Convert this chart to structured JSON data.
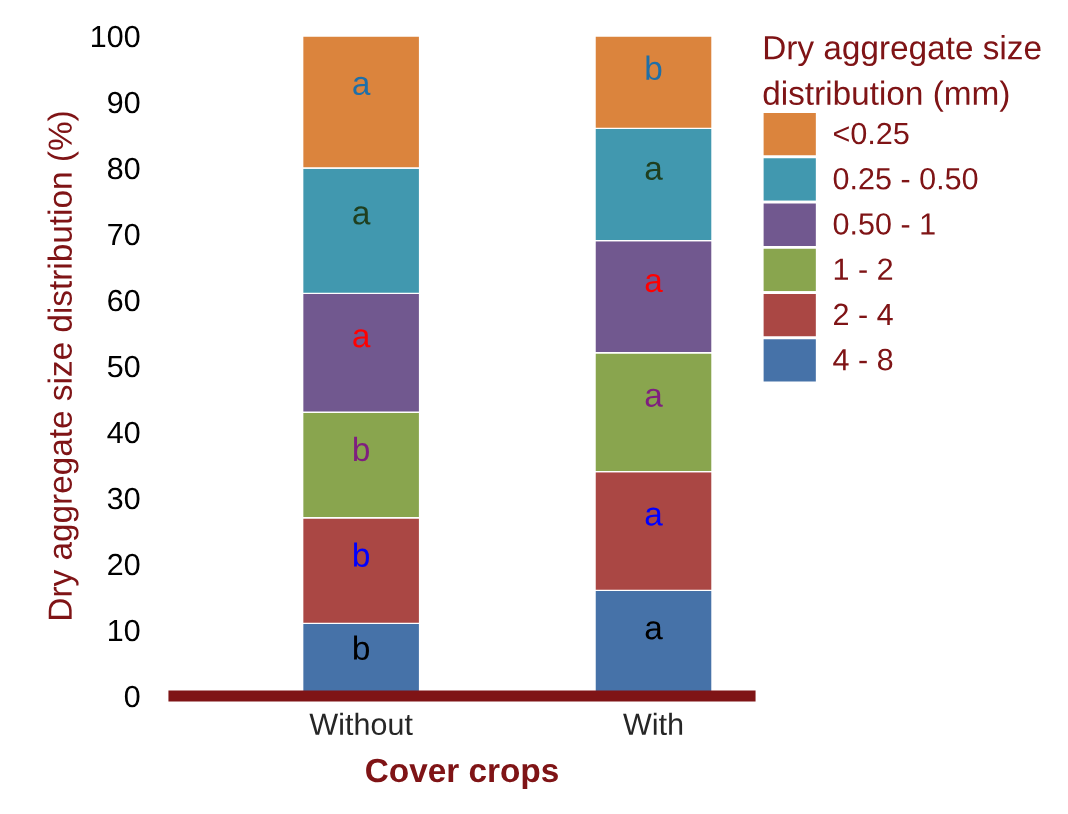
{
  "chart_data": {
    "type": "bar",
    "stacked": true,
    "xlabel": "Cover crops",
    "ylabel": "Dry aggregate size distribution (%)",
    "legend_title": "Dry aggregate size\ndistribution (mm)",
    "legend": "right",
    "categories": [
      "Without",
      "With"
    ],
    "series": [
      {
        "name": "4 - 8",
        "color": "#4672a8",
        "values": [
          11,
          16
        ]
      },
      {
        "name": "2 - 4",
        "color": "#aa4744",
        "values": [
          16,
          18
        ]
      },
      {
        "name": "1 - 2",
        "color": "#89a54e",
        "values": [
          16,
          18
        ]
      },
      {
        "name": "0.50 - 1",
        "color": "#71588f",
        "values": [
          18,
          17
        ]
      },
      {
        "name": "0.25 - 0.50",
        "color": "#4198af",
        "values": [
          19,
          17
        ]
      },
      {
        "name": "<0.25",
        "color": "#db843d",
        "values": [
          20,
          14
        ]
      }
    ],
    "ylim": [
      0,
      100
    ],
    "yticks": [
      0,
      10,
      20,
      30,
      40,
      50,
      60,
      70,
      80,
      90,
      100
    ],
    "grid": false,
    "annotations": [
      "b",
      "b",
      "b",
      "a",
      "a",
      "a",
      "a",
      "a",
      "a",
      "a",
      "a",
      "b"
    ]
  }
}
